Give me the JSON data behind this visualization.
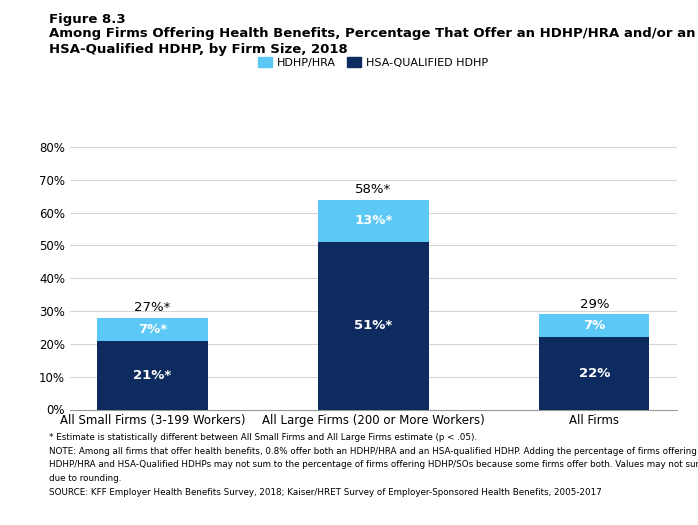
{
  "categories": [
    "All Small Firms (3-199 Workers)",
    "All Large Firms (200 or More Workers)",
    "All Firms"
  ],
  "hsa_values": [
    21,
    51,
    22
  ],
  "hdhp_values": [
    7,
    13,
    7
  ],
  "hsa_labels": [
    "21%*",
    "51%*",
    "22%"
  ],
  "hdhp_labels": [
    "7%*",
    "13%*",
    "7%"
  ],
  "total_labels": [
    "27%*",
    "58%*",
    "29%"
  ],
  "hsa_color": "#0d2b5e",
  "hdhp_color": "#5bc8f5",
  "bar_width": 0.5,
  "ylim": [
    0,
    80
  ],
  "yticks": [
    0,
    10,
    20,
    30,
    40,
    50,
    60,
    70,
    80
  ],
  "ytick_labels": [
    "0%",
    "10%",
    "20%",
    "30%",
    "40%",
    "50%",
    "60%",
    "70%",
    "80%"
  ],
  "legend_labels": [
    "HDHP/HRA",
    "HSA-QUALIFIED HDHP"
  ],
  "figure_label": "Figure 8.3",
  "title_line1": "Among Firms Offering Health Benefits, Percentage That Offer an HDHP/HRA and/or an",
  "title_line2": "HSA-Qualified HDHP, by Firm Size, 2018",
  "footnote1": "* Estimate is statistically different between All Small Firms and All Large Firms estimate (p < .05).",
  "footnote2": "NOTE: Among all firms that offer health benefits, 0.8% offer both an HDHP/HRA and an HSA-qualified HDHP. Adding the percentage of firms offering",
  "footnote3": "HDHP/HRA and HSA-Qualified HDHPs may not sum to the percentage of firms offering HDHP/SOs because some firms offer both. Values may not sum to totals",
  "footnote4": "due to rounding.",
  "footnote5": "SOURCE: KFF Employer Health Benefits Survey, 2018; Kaiser/HRET Survey of Employer-Sponsored Health Benefits, 2005-2017"
}
